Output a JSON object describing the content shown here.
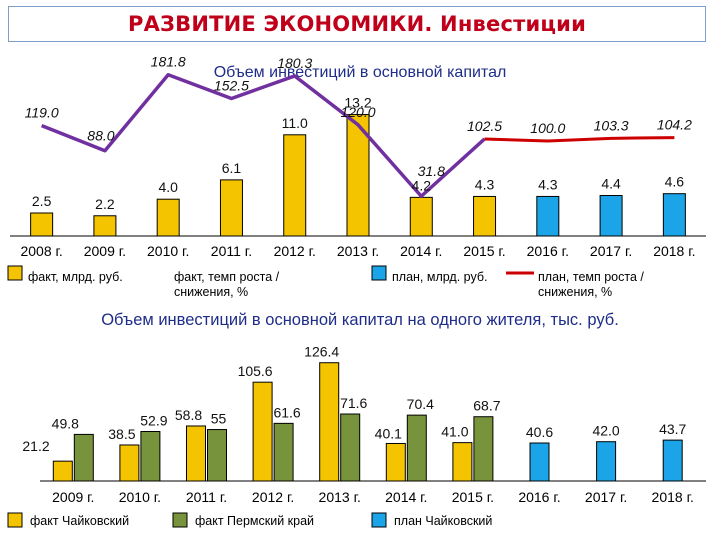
{
  "page": {
    "title": "РАЗВИТИЕ ЭКОНОМИКИ. Инвестиции"
  },
  "chart_data": [
    {
      "type": "bar",
      "title": "Объем инвестиций в основной капитал",
      "categories": [
        "2008 г.",
        "2009 г.",
        "2010 г.",
        "2011 г.",
        "2012 г.",
        "2013 г.",
        "2014 г.",
        "2015 г.",
        "2016 г.",
        "2017 г.",
        "2018 г."
      ],
      "series": [
        {
          "name": "факт, млрд. руб.",
          "kind": "bar",
          "color": "#f5c400",
          "values": [
            2.5,
            2.2,
            4.0,
            6.1,
            11.0,
            13.2,
            4.2,
            4.3,
            null,
            null,
            null
          ],
          "labels": [
            "2.5",
            "2.2",
            "4.0",
            "6.1",
            "11.0",
            "13.2",
            "4.2",
            "4.3",
            "",
            "",
            ""
          ]
        },
        {
          "name": "план, млрд. руб.",
          "kind": "bar",
          "color": "#1ba4e8",
          "values": [
            null,
            null,
            null,
            null,
            null,
            null,
            null,
            null,
            4.3,
            4.4,
            4.6
          ],
          "labels": [
            "",
            "",
            "",
            "",
            "",
            "",
            "",
            "",
            "4.3",
            "4.4",
            "4.6"
          ]
        },
        {
          "name": "факт, темп роста / снижения, %",
          "kind": "line",
          "color": "#7030a0",
          "values": [
            119.0,
            88.0,
            181.8,
            152.5,
            180.3,
            120.0,
            31.8,
            102.5,
            null,
            null,
            null
          ],
          "labels": [
            "119.0",
            "88.0",
            "181.8",
            "152.5",
            "180.3",
            "120.0",
            "31.8",
            "102.5",
            "",
            "",
            ""
          ]
        },
        {
          "name": "план, темп роста / снижения, %",
          "kind": "line",
          "color": "#cc0000",
          "values": [
            null,
            null,
            null,
            null,
            null,
            null,
            null,
            102.5,
            100.0,
            103.3,
            104.2
          ],
          "labels": [
            "",
            "",
            "",
            "",
            "",
            "",
            "",
            "",
            "100.0",
            "103.3",
            "104.2"
          ]
        }
      ],
      "ylim_bars": [
        0,
        15
      ],
      "ylim_line": [
        0,
        200
      ],
      "legend": {
        "placement": "bottom"
      }
    },
    {
      "type": "bar",
      "title": "Объем инвестиций в основной капитал на одного жителя, тыс. руб.",
      "categories": [
        "2009 г.",
        "2010 г.",
        "2011 г.",
        "2012 г.",
        "2013 г.",
        "2014 г.",
        "2015 г.",
        "2016 г.",
        "2017 г.",
        "2018 г."
      ],
      "series": [
        {
          "name": "факт Чайковский",
          "color": "#f5c400",
          "values": [
            21.2,
            38.5,
            58.8,
            105.6,
            126.4,
            40.1,
            41.0,
            null,
            null,
            null
          ],
          "labels": [
            "21.2",
            "38.5",
            "58.8",
            "105.6",
            "126.4",
            "40.1",
            "41.0",
            "",
            "",
            ""
          ]
        },
        {
          "name": "факт Пермский край",
          "color": "#77933c",
          "values": [
            49.8,
            52.9,
            55,
            61.6,
            71.6,
            70.4,
            68.7,
            null,
            null,
            null
          ],
          "labels": [
            "49.8",
            "52.9",
            "55",
            "61.6",
            "71.6",
            "70.4",
            "68.7",
            "",
            "",
            ""
          ]
        },
        {
          "name": "план Чайковский",
          "color": "#1ba4e8",
          "values": [
            null,
            null,
            null,
            null,
            null,
            null,
            null,
            40.6,
            42.0,
            43.7
          ],
          "labels": [
            "",
            "",
            "",
            "",
            "",
            "",
            "",
            "40.6",
            "42.0",
            "43.7"
          ]
        }
      ],
      "ylim": [
        0,
        140
      ],
      "legend": {
        "placement": "bottom"
      }
    }
  ]
}
